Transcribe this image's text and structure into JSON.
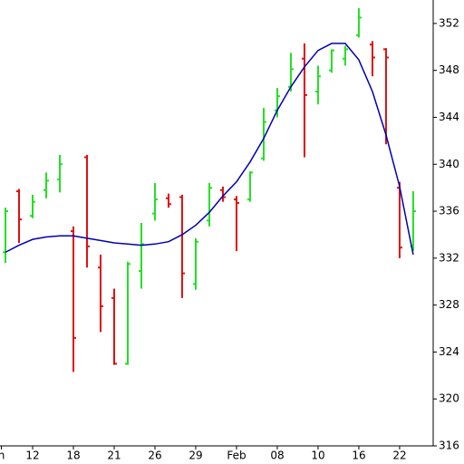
{
  "chart_data": {
    "type": "ohlc",
    "x": [
      0,
      1,
      2,
      3,
      4,
      5,
      6,
      7,
      8,
      9,
      10,
      11,
      12,
      13,
      14,
      15,
      16,
      17,
      18,
      19,
      20,
      21,
      22,
      23,
      24,
      25,
      26,
      27,
      28,
      29,
      30
    ],
    "open": [
      332.5,
      337.7,
      335.6,
      337.8,
      338.7,
      334.3,
      340.6,
      331.2,
      328.6,
      323.0,
      330.9,
      335.8,
      337.1,
      337.2,
      329.8,
      335.2,
      337.8,
      337.0,
      337.0,
      340.5,
      344.6,
      346.6,
      349.0,
      346.2,
      348.0,
      349.0,
      351.0,
      350.2,
      349.8,
      338.0,
      333.0
    ],
    "high": [
      336.3,
      337.9,
      337.4,
      339.3,
      340.8,
      334.7,
      340.8,
      332.3,
      329.4,
      331.7,
      335.0,
      338.4,
      337.5,
      337.4,
      333.7,
      338.4,
      338.1,
      337.3,
      339.4,
      344.8,
      346.5,
      349.5,
      350.3,
      348.4,
      349.8,
      350.1,
      353.3,
      350.5,
      349.9,
      338.5,
      337.7
    ],
    "low": [
      331.6,
      333.3,
      335.4,
      337.1,
      337.6,
      322.3,
      331.2,
      325.7,
      322.9,
      322.9,
      329.4,
      335.2,
      336.3,
      328.6,
      329.3,
      334.7,
      336.8,
      332.6,
      336.8,
      340.3,
      344.0,
      346.2,
      340.6,
      345.1,
      347.8,
      348.4,
      350.8,
      347.5,
      341.7,
      332.0,
      332.6
    ],
    "close": [
      336.0,
      335.3,
      336.8,
      338.6,
      340.0,
      325.2,
      333.0,
      327.9,
      323.0,
      331.5,
      333.2,
      337.0,
      336.6,
      330.7,
      333.4,
      338.0,
      337.2,
      336.7,
      339.3,
      343.6,
      345.8,
      348.1,
      345.9,
      347.5,
      349.7,
      349.8,
      352.5,
      349.1,
      349.1,
      332.9,
      336.0
    ],
    "up_color": "#22e022",
    "down_color": "#e01010",
    "line": {
      "color": "#0000b0",
      "values": [
        332.5,
        333.1,
        333.6,
        333.8,
        333.9,
        333.9,
        333.7,
        333.5,
        333.3,
        333.2,
        333.1,
        333.2,
        333.4,
        334.0,
        334.8,
        335.9,
        337.3,
        338.5,
        340.2,
        342.2,
        344.6,
        346.6,
        348.3,
        349.7,
        350.3,
        350.3,
        348.9,
        346.2,
        342.5,
        338.1,
        332.3
      ]
    },
    "xlim": [
      -0.4,
      31.47
    ],
    "ylim": [
      316,
      354
    ],
    "xticks": [
      {
        "value": -0.3,
        "label": "n"
      },
      {
        "value": 2,
        "label": "12"
      },
      {
        "value": 5,
        "label": "18"
      },
      {
        "value": 8,
        "label": "21"
      },
      {
        "value": 11,
        "label": "26"
      },
      {
        "value": 14,
        "label": "29"
      },
      {
        "value": 17,
        "label": "Feb"
      },
      {
        "value": 20,
        "label": "08"
      },
      {
        "value": 23,
        "label": "10"
      },
      {
        "value": 26,
        "label": "16"
      },
      {
        "value": 29,
        "label": "22"
      }
    ],
    "yticks": [
      316,
      320,
      324,
      328,
      332,
      336,
      340,
      344,
      348,
      352
    ]
  }
}
